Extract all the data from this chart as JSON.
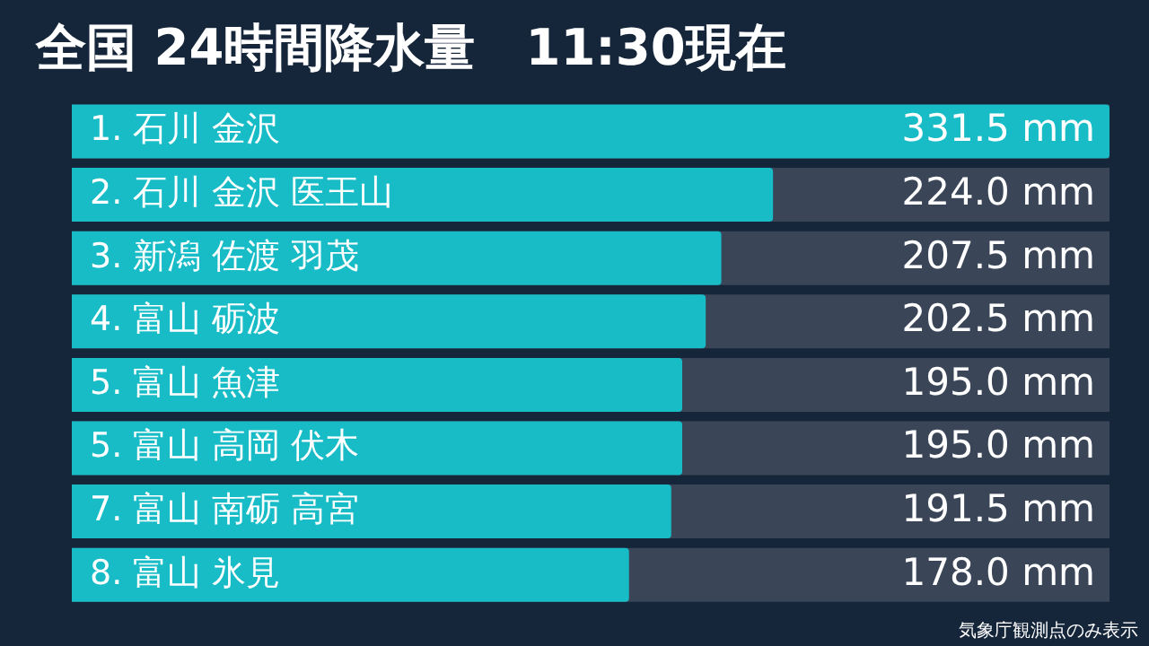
{
  "chart_data": {
    "type": "bar",
    "orientation": "horizontal",
    "title": "全国 24時間降水量　11:30現在",
    "categories": [
      "1. 石川 金沢",
      "2. 石川 金沢 医王山",
      "3. 新潟 佐渡 羽茂",
      "4. 富山 砺波",
      "5. 富山 魚津",
      "5. 富山 高岡 伏木",
      "7. 富山 南砺 高宮",
      "8. 富山 氷見"
    ],
    "values": [
      331.5,
      224.0,
      207.5,
      202.5,
      195.0,
      195.0,
      191.5,
      178.0
    ],
    "value_labels": [
      "331.5 mm",
      "224.0 mm",
      "207.5 mm",
      "202.5 mm",
      "195.0 mm",
      "195.0 mm",
      "191.5 mm",
      "178.0 mm"
    ],
    "color": "#17bcc6",
    "xlim": [
      0,
      331.5
    ],
    "tick_labels": "y",
    "grid": false,
    "legend": false,
    "annotations": [
      "気象庁観測点のみ表示"
    ]
  }
}
